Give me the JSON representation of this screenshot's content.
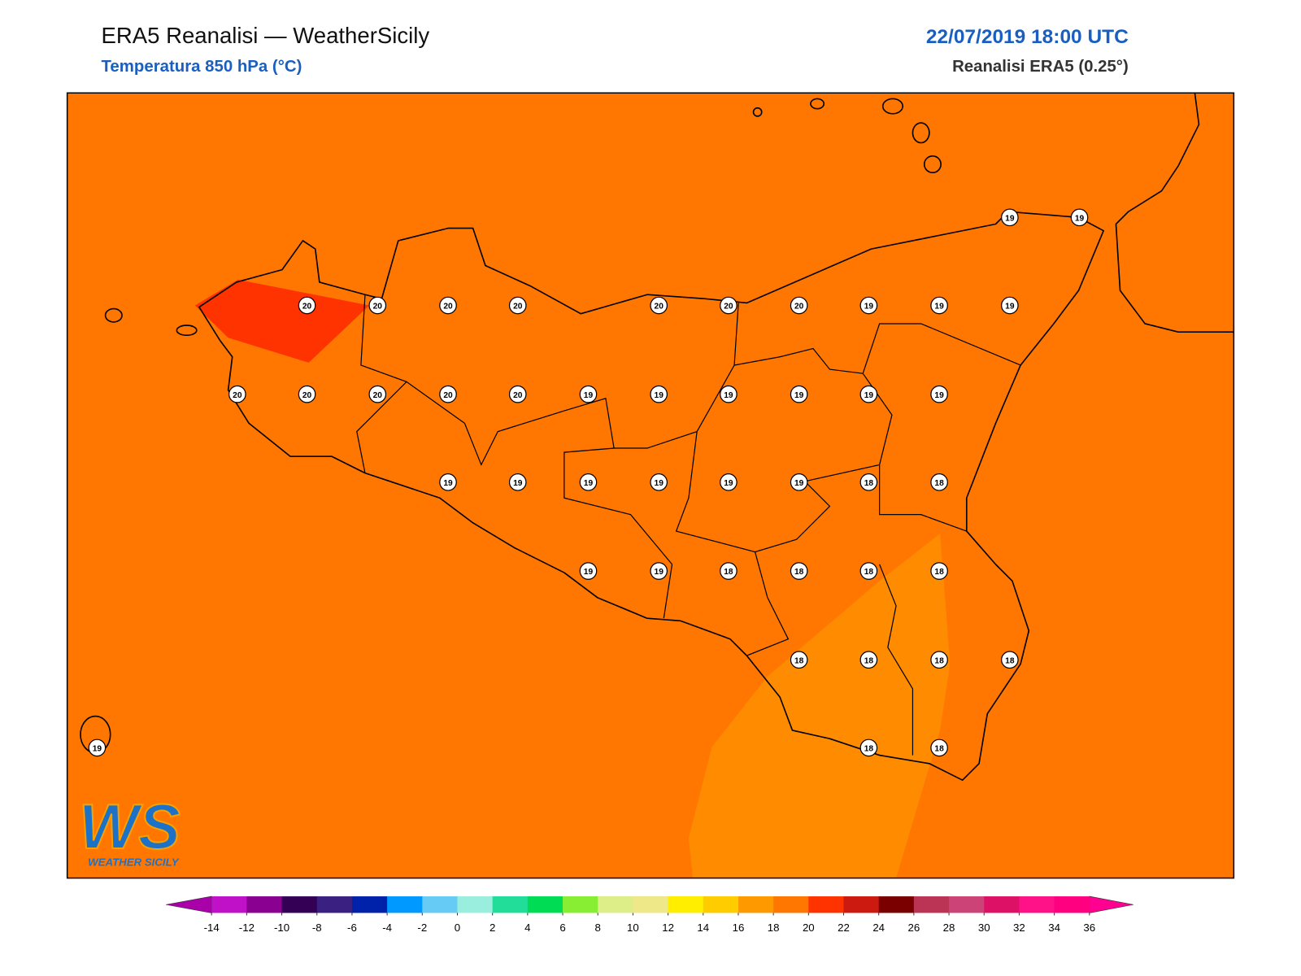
{
  "header": {
    "title": "ERA5 Reanalisi — WeatherSicily",
    "subtitle": "Temperatura 850 hPa (°C)",
    "date": "22/07/2019 18:00 UTC",
    "source": "Reanalisi ERA5 (0.25°)"
  },
  "stations": [
    19,
    19,
    20,
    20,
    20,
    20,
    20,
    20,
    20,
    19,
    19,
    19,
    20,
    20,
    20,
    20,
    20,
    19,
    19,
    19,
    19,
    19,
    19,
    19,
    19,
    19,
    19,
    19,
    19,
    18,
    18,
    19,
    19,
    18,
    18,
    18,
    18,
    18,
    18,
    18,
    18,
    19,
    18,
    18
  ],
  "logo": {
    "mark": "WS",
    "name": "WEATHER SICILY"
  },
  "colorbar": {
    "ticks": [
      -14,
      -12,
      -10,
      -8,
      -6,
      -4,
      -2,
      0,
      2,
      4,
      6,
      8,
      10,
      12,
      14,
      16,
      18,
      20,
      22,
      24,
      26,
      28,
      30,
      32,
      34,
      36
    ],
    "colors": [
      "#c010c8",
      "#8a0090",
      "#330055",
      "#3a2080",
      "#0022aa",
      "#0099ff",
      "#66ccf5",
      "#99eedd",
      "#22dd99",
      "#00dd55",
      "#88ee33",
      "#ddee88",
      "#eee888",
      "#ffee00",
      "#ffcc00",
      "#ff9900",
      "#ff7700",
      "#ff3300",
      "#cc1a11",
      "#7a0000",
      "#bb3355",
      "#cc4477",
      "#dd1166",
      "#ff1188",
      "#ff0080"
    ],
    "under_color": "#aa00aa",
    "over_color": "#ff0090"
  }
}
